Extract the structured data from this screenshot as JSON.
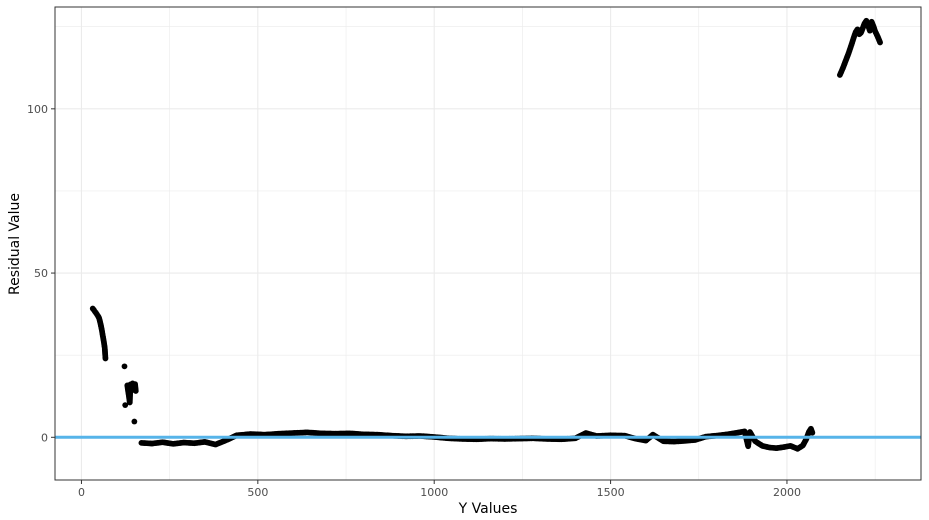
{
  "chart_data": {
    "type": "scatter",
    "title": "",
    "xlabel": "Y Values",
    "ylabel": "Residual Value",
    "xlim": [
      -75,
      2380
    ],
    "ylim": [
      -13,
      131
    ],
    "x_ticks": [
      0,
      500,
      1000,
      1500,
      2000
    ],
    "y_ticks": [
      0,
      50,
      100
    ],
    "grid": true,
    "legend": "none",
    "colors": {
      "points": "#000000",
      "reference_line": "#56B4E9",
      "grid": "#ebebeb",
      "panel_border": "#333333"
    },
    "reference_line": {
      "y": 0
    },
    "points": [
      [
        32,
        39.2
      ],
      [
        35,
        38.8
      ],
      [
        38,
        38.3
      ],
      [
        41,
        37.9
      ],
      [
        44,
        37.4
      ],
      [
        47,
        36.9
      ],
      [
        50,
        36.3
      ],
      [
        52,
        35.5
      ],
      [
        54,
        34.6
      ],
      [
        56,
        33.6
      ],
      [
        58,
        32.5
      ],
      [
        60,
        31.2
      ],
      [
        62,
        30.0
      ],
      [
        64,
        28.7
      ],
      [
        66,
        27.2
      ],
      [
        67,
        25.6
      ],
      [
        68,
        24.0
      ],
      [
        122,
        21.6
      ],
      [
        124,
        9.8
      ],
      [
        130,
        15.8
      ],
      [
        133,
        13.6
      ],
      [
        135,
        12.2
      ],
      [
        137,
        10.6
      ],
      [
        139,
        16.1
      ],
      [
        141,
        14.2
      ],
      [
        145,
        16.4
      ],
      [
        148,
        14.6
      ],
      [
        150,
        4.8
      ],
      [
        152,
        16.2
      ],
      [
        154,
        14.1
      ],
      [
        170,
        -1.7
      ],
      [
        200,
        -1.9
      ],
      [
        230,
        -1.5
      ],
      [
        260,
        -2.0
      ],
      [
        290,
        -1.6
      ],
      [
        320,
        -1.8
      ],
      [
        350,
        -1.4
      ],
      [
        380,
        -2.2
      ],
      [
        410,
        -0.9
      ],
      [
        440,
        0.6
      ],
      [
        480,
        1.0
      ],
      [
        520,
        0.8
      ],
      [
        560,
        1.1
      ],
      [
        600,
        1.3
      ],
      [
        640,
        1.5
      ],
      [
        680,
        1.2
      ],
      [
        720,
        1.1
      ],
      [
        760,
        1.2
      ],
      [
        800,
        0.9
      ],
      [
        840,
        0.8
      ],
      [
        880,
        0.5
      ],
      [
        920,
        0.3
      ],
      [
        960,
        0.4
      ],
      [
        1000,
        0.1
      ],
      [
        1040,
        -0.3
      ],
      [
        1080,
        -0.5
      ],
      [
        1120,
        -0.6
      ],
      [
        1160,
        -0.4
      ],
      [
        1200,
        -0.5
      ],
      [
        1240,
        -0.4
      ],
      [
        1280,
        -0.3
      ],
      [
        1320,
        -0.5
      ],
      [
        1360,
        -0.6
      ],
      [
        1400,
        -0.3
      ],
      [
        1430,
        1.3
      ],
      [
        1460,
        0.4
      ],
      [
        1500,
        0.6
      ],
      [
        1540,
        0.5
      ],
      [
        1570,
        -0.4
      ],
      [
        1600,
        -1.0
      ],
      [
        1620,
        0.8
      ],
      [
        1650,
        -1.2
      ],
      [
        1680,
        -1.3
      ],
      [
        1710,
        -1.1
      ],
      [
        1740,
        -0.8
      ],
      [
        1770,
        0.2
      ],
      [
        1800,
        0.5
      ],
      [
        1830,
        0.9
      ],
      [
        1860,
        1.4
      ],
      [
        1880,
        1.8
      ],
      [
        1890,
        -2.7
      ],
      [
        1895,
        1.6
      ],
      [
        1910,
        -1.2
      ],
      [
        1930,
        -2.6
      ],
      [
        1950,
        -3.1
      ],
      [
        1970,
        -3.3
      ],
      [
        1990,
        -3.0
      ],
      [
        2010,
        -2.6
      ],
      [
        2030,
        -3.5
      ],
      [
        2045,
        -2.5
      ],
      [
        2055,
        -0.5
      ],
      [
        2062,
        1.6
      ],
      [
        2068,
        2.6
      ],
      [
        2072,
        1.4
      ],
      [
        2150,
        110.3
      ],
      [
        2155,
        111.5
      ],
      [
        2160,
        112.8
      ],
      [
        2165,
        114.2
      ],
      [
        2170,
        115.6
      ],
      [
        2175,
        117.0
      ],
      [
        2180,
        118.6
      ],
      [
        2185,
        120.2
      ],
      [
        2190,
        121.9
      ],
      [
        2195,
        123.4
      ],
      [
        2200,
        124.2
      ],
      [
        2205,
        122.7
      ],
      [
        2210,
        123.2
      ],
      [
        2215,
        124.6
      ],
      [
        2220,
        126.0
      ],
      [
        2225,
        126.8
      ],
      [
        2230,
        125.4
      ],
      [
        2235,
        123.8
      ],
      [
        2240,
        126.5
      ],
      [
        2245,
        125.2
      ],
      [
        2250,
        123.6
      ],
      [
        2258,
        121.8
      ],
      [
        2264,
        120.2
      ]
    ]
  }
}
